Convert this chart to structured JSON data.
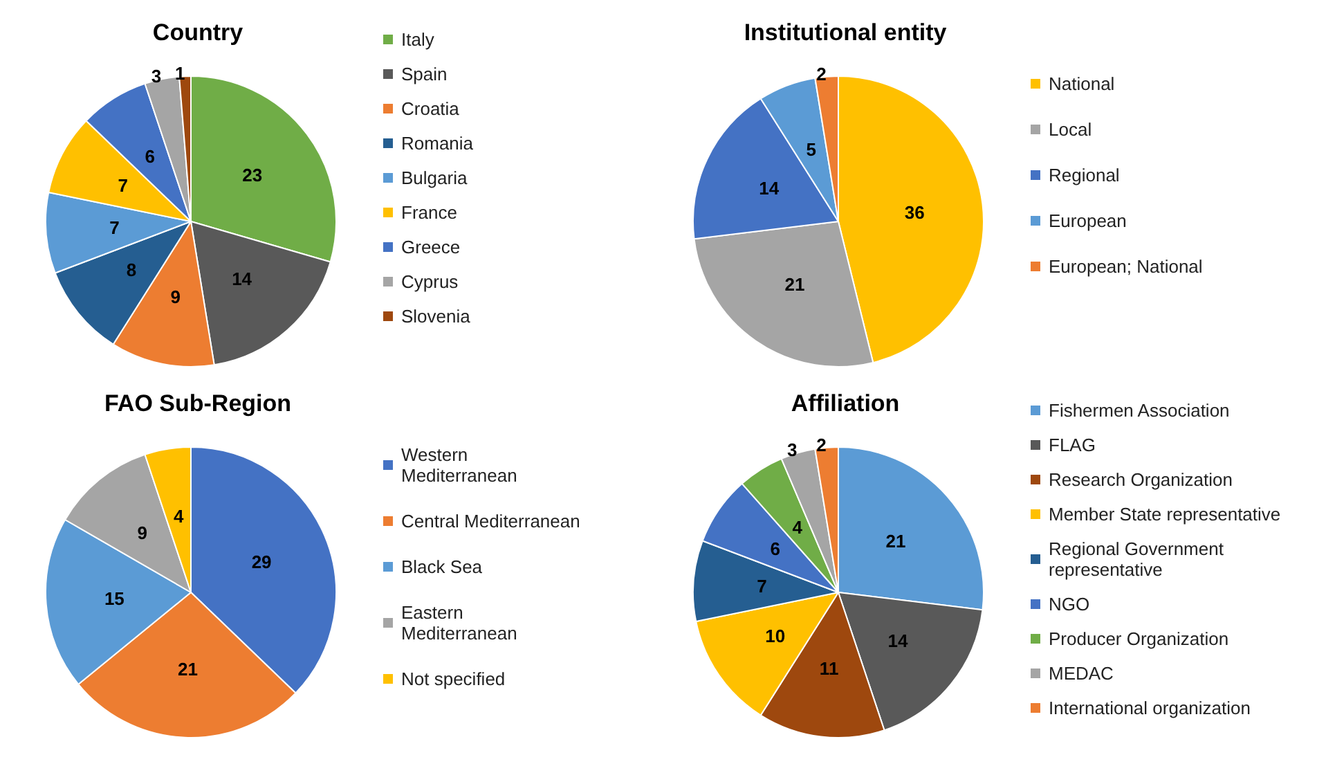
{
  "chart_data": [
    {
      "type": "pie",
      "title": "Country",
      "categories": [
        "Italy",
        "Spain",
        "Croatia",
        "Romania",
        "Bulgaria",
        "France",
        "Greece",
        "Cyprus",
        "Slovenia"
      ],
      "values": [
        23,
        14,
        9,
        8,
        7,
        7,
        6,
        3,
        1
      ],
      "colors": [
        "#70ad47",
        "#595959",
        "#ed7d31",
        "#255e91",
        "#5b9bd5",
        "#ffc000",
        "#4472c4",
        "#a5a5a5",
        "#9e480e"
      ],
      "data_labels": true,
      "legend": "right"
    },
    {
      "type": "pie",
      "title": "Institutional entity",
      "categories": [
        "National",
        "Local",
        "Regional",
        "European",
        "European; National"
      ],
      "values": [
        36,
        21,
        14,
        5,
        2
      ],
      "colors": [
        "#ffc000",
        "#a5a5a5",
        "#4472c4",
        "#5b9bd5",
        "#ed7d31"
      ],
      "data_labels": true,
      "legend": "right"
    },
    {
      "type": "pie",
      "title": "FAO Sub-Region",
      "categories": [
        "Western Mediterranean",
        "Central Mediterranean",
        "Black Sea",
        "Eastern Mediterranean",
        "Not specified"
      ],
      "values": [
        29,
        21,
        15,
        9,
        4
      ],
      "colors": [
        "#4472c4",
        "#ed7d31",
        "#5b9bd5",
        "#a5a5a5",
        "#ffc000"
      ],
      "data_labels": true,
      "legend": "right"
    },
    {
      "type": "pie",
      "title": "Affiliation",
      "categories": [
        "Fishermen Association",
        "FLAG",
        "Research Organization",
        "Member State representative",
        "Regional Government representative",
        "NGO",
        "Producer Organization",
        "MEDAC",
        "International organization"
      ],
      "values": [
        21,
        14,
        11,
        10,
        7,
        6,
        4,
        3,
        2
      ],
      "colors": [
        "#5b9bd5",
        "#595959",
        "#9e480e",
        "#ffc000",
        "#255e91",
        "#4472c4",
        "#70ad47",
        "#a5a5a5",
        "#ed7d31"
      ],
      "data_labels": true,
      "legend": "right"
    }
  ]
}
